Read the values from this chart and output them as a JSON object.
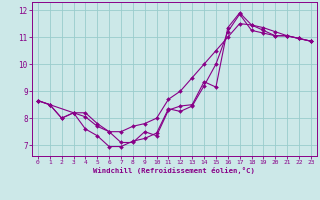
{
  "xlabel": "Windchill (Refroidissement éolien,°C)",
  "background_color": "#cce8e8",
  "grid_color": "#99cccc",
  "line_color": "#880088",
  "xlim": [
    -0.5,
    23.5
  ],
  "ylim": [
    6.6,
    12.3
  ],
  "xticks": [
    0,
    1,
    2,
    3,
    4,
    5,
    6,
    7,
    8,
    9,
    10,
    11,
    12,
    13,
    14,
    15,
    16,
    17,
    18,
    19,
    20,
    21,
    22,
    23
  ],
  "yticks": [
    7,
    8,
    9,
    10,
    11,
    12
  ],
  "line1_x": [
    0,
    1,
    2,
    3,
    4,
    5,
    6,
    7,
    8,
    9,
    10,
    11,
    12,
    13,
    14,
    15,
    16,
    17,
    18,
    19,
    20,
    21,
    22,
    23
  ],
  "line1_y": [
    8.65,
    8.5,
    8.0,
    8.2,
    7.6,
    7.35,
    6.95,
    6.95,
    7.15,
    7.25,
    7.45,
    8.35,
    8.25,
    8.45,
    9.2,
    10.0,
    11.2,
    11.85,
    11.25,
    11.15,
    11.05,
    11.05,
    10.95,
    10.85
  ],
  "line2_x": [
    0,
    1,
    3,
    4,
    5,
    6,
    7,
    8,
    9,
    10,
    11,
    12,
    13,
    14,
    15,
    16,
    17,
    18,
    19,
    20,
    21,
    22,
    23
  ],
  "line2_y": [
    8.65,
    8.5,
    8.2,
    8.05,
    7.7,
    7.5,
    7.1,
    7.1,
    7.5,
    7.35,
    8.3,
    8.45,
    8.5,
    9.35,
    9.15,
    11.35,
    11.9,
    11.45,
    11.25,
    11.05,
    11.05,
    10.95,
    10.85
  ],
  "line3_x": [
    0,
    1,
    2,
    3,
    4,
    5,
    6,
    7,
    8,
    9,
    10,
    11,
    12,
    13,
    14,
    15,
    16,
    17,
    18,
    19,
    20,
    21,
    22,
    23
  ],
  "line3_y": [
    8.65,
    8.5,
    8.0,
    8.2,
    8.2,
    7.8,
    7.5,
    7.5,
    7.7,
    7.8,
    8.0,
    8.7,
    9.0,
    9.5,
    10.0,
    10.5,
    11.0,
    11.5,
    11.45,
    11.35,
    11.2,
    11.05,
    10.95,
    10.85
  ]
}
